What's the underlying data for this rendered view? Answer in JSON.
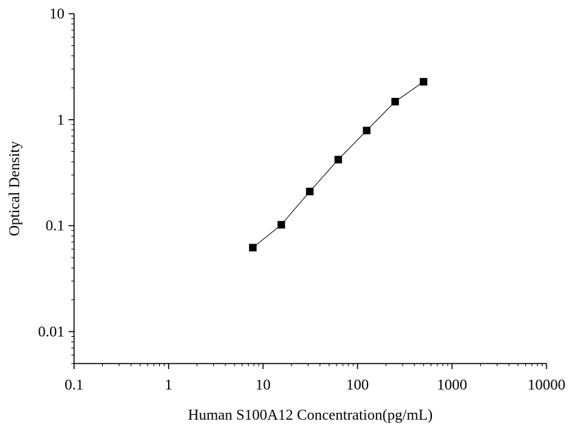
{
  "chart_data": {
    "type": "scatter",
    "title": "",
    "xlabel": "Human S100A12 Concentration(pg/mL)",
    "ylabel": "Optical Density",
    "x_scale": "log",
    "y_scale": "log",
    "xlim": [
      0.1,
      10000
    ],
    "ylim": [
      0.005,
      10
    ],
    "grid": false,
    "legend": "none",
    "x_ticks": [
      "0.1",
      "1",
      "10",
      "100",
      "1000",
      "10000"
    ],
    "y_ticks": [
      "0.01",
      "0.1",
      "1",
      "10"
    ],
    "series": [
      {
        "x": [
          7.8,
          15.6,
          31.25,
          62.5,
          125,
          250,
          500
        ],
        "y": [
          0.062,
          0.102,
          0.21,
          0.42,
          0.79,
          1.48,
          2.28
        ],
        "color": "#000000",
        "marker": "square",
        "line": true
      }
    ]
  }
}
